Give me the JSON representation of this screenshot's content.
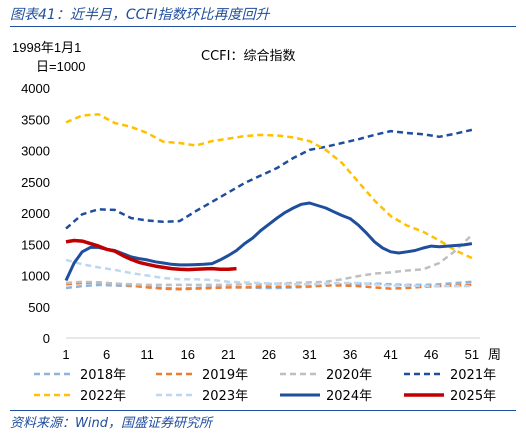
{
  "figure_title": "图表41：近半月，CCFI指数环比再度回升",
  "source": "资料来源：Wind，国盛证券研究所",
  "chart_data": {
    "type": "line",
    "title": "CCFI：综合指数",
    "ylabel": "1998年1月1日=1000",
    "xlabel_unit": "周",
    "xlim": [
      1,
      52
    ],
    "ylim": [
      0,
      4000
    ],
    "yticks": [
      0,
      500,
      1000,
      1500,
      2000,
      2500,
      3000,
      3500,
      4000
    ],
    "xticks": [
      1,
      6,
      11,
      16,
      21,
      26,
      31,
      36,
      41,
      46,
      51
    ],
    "grid": false,
    "legend_position": "bottom",
    "series": [
      {
        "name": "2018年",
        "color": "#8fb4dc",
        "style": "dashed",
        "width": 2.5,
        "x": [
          1,
          3,
          5,
          7,
          9,
          11,
          13,
          15,
          17,
          19,
          21,
          23,
          25,
          27,
          29,
          31,
          33,
          35,
          37,
          39,
          41,
          43,
          45,
          47,
          49,
          51
        ],
        "values": [
          800,
          830,
          850,
          840,
          830,
          820,
          800,
          790,
          800,
          810,
          810,
          810,
          800,
          800,
          810,
          820,
          840,
          860,
          870,
          870,
          860,
          850,
          850,
          860,
          880,
          900
        ]
      },
      {
        "name": "2019年",
        "color": "#ed7d31",
        "style": "dashed",
        "width": 2.5,
        "x": [
          1,
          3,
          5,
          7,
          9,
          11,
          13,
          15,
          17,
          19,
          21,
          23,
          25,
          27,
          29,
          31,
          33,
          35,
          37,
          39,
          41,
          43,
          45,
          47,
          49,
          51
        ],
        "values": [
          860,
          880,
          890,
          870,
          840,
          810,
          790,
          780,
          790,
          800,
          810,
          810,
          820,
          820,
          820,
          830,
          840,
          840,
          830,
          810,
          790,
          800,
          820,
          830,
          840,
          850
        ]
      },
      {
        "name": "2020年",
        "color": "#bfbfbf",
        "style": "dashed",
        "width": 2.5,
        "x": [
          1,
          3,
          5,
          7,
          9,
          11,
          13,
          15,
          17,
          19,
          21,
          23,
          25,
          27,
          29,
          31,
          33,
          35,
          37,
          39,
          41,
          43,
          45,
          47,
          49,
          51
        ],
        "values": [
          880,
          900,
          890,
          870,
          860,
          850,
          850,
          850,
          850,
          850,
          850,
          860,
          860,
          870,
          880,
          890,
          900,
          940,
          990,
          1030,
          1050,
          1080,
          1100,
          1200,
          1400,
          1650
        ]
      },
      {
        "name": "2021年",
        "color": "#1f4e9c",
        "style": "dashed",
        "width": 2.5,
        "x": [
          1,
          3,
          5,
          7,
          9,
          11,
          13,
          15,
          17,
          19,
          21,
          23,
          25,
          27,
          29,
          31,
          33,
          35,
          37,
          39,
          41,
          43,
          45,
          47,
          49,
          51
        ],
        "values": [
          1750,
          1980,
          2060,
          2050,
          1920,
          1880,
          1860,
          1870,
          2030,
          2180,
          2330,
          2480,
          2600,
          2720,
          2880,
          3010,
          3060,
          3120,
          3180,
          3250,
          3310,
          3280,
          3260,
          3220,
          3270,
          3330
        ]
      },
      {
        "name": "2022年",
        "color": "#ffc000",
        "style": "dashed",
        "width": 2.5,
        "x": [
          1,
          3,
          5,
          7,
          9,
          11,
          13,
          15,
          17,
          19,
          21,
          23,
          25,
          27,
          29,
          31,
          33,
          35,
          37,
          39,
          41,
          43,
          45,
          47,
          49,
          51
        ],
        "values": [
          3450,
          3560,
          3580,
          3440,
          3380,
          3280,
          3140,
          3120,
          3080,
          3150,
          3190,
          3230,
          3250,
          3240,
          3210,
          3150,
          3010,
          2800,
          2500,
          2200,
          1950,
          1800,
          1700,
          1560,
          1400,
          1280
        ]
      },
      {
        "name": "2023年",
        "color": "#bdd7ee",
        "style": "dashed",
        "width": 2.5,
        "x": [
          1,
          3,
          5,
          7,
          9,
          11,
          13,
          15,
          17,
          19,
          21,
          23,
          25,
          27,
          29,
          31,
          33,
          35,
          37,
          39,
          41,
          43,
          45,
          47,
          49,
          51
        ],
        "values": [
          1250,
          1180,
          1130,
          1090,
          1040,
          1000,
          960,
          940,
          940,
          930,
          900,
          890,
          880,
          870,
          860,
          860,
          870,
          880,
          880,
          860,
          840,
          840,
          830,
          830,
          830,
          830
        ]
      },
      {
        "name": "2024年",
        "color": "#1f4e9c",
        "style": "solid",
        "width": 3,
        "x": [
          1,
          2,
          3,
          4,
          5,
          6,
          7,
          8,
          9,
          10,
          11,
          12,
          13,
          14,
          15,
          16,
          17,
          18,
          19,
          20,
          21,
          22,
          23,
          24,
          25,
          26,
          27,
          28,
          29,
          30,
          31,
          32,
          33,
          34,
          35,
          36,
          37,
          38,
          39,
          40,
          41,
          42,
          43,
          44,
          45,
          46,
          47,
          48,
          49,
          50,
          51
        ],
        "values": [
          920,
          1200,
          1380,
          1450,
          1450,
          1420,
          1400,
          1350,
          1300,
          1270,
          1250,
          1220,
          1200,
          1180,
          1170,
          1170,
          1175,
          1180,
          1190,
          1250,
          1320,
          1400,
          1510,
          1600,
          1720,
          1820,
          1920,
          2010,
          2080,
          2140,
          2160,
          2120,
          2080,
          2020,
          1960,
          1910,
          1810,
          1680,
          1540,
          1440,
          1380,
          1360,
          1380,
          1400,
          1440,
          1470,
          1460,
          1470,
          1480,
          1490,
          1510
        ]
      },
      {
        "name": "2025年",
        "color": "#c00000",
        "style": "solid",
        "width": 3.5,
        "x": [
          1,
          2,
          3,
          4,
          5,
          6,
          7,
          8,
          9,
          10,
          11,
          12,
          13,
          14,
          15,
          16,
          17,
          18,
          19,
          20,
          21,
          22
        ],
        "values": [
          1540,
          1560,
          1550,
          1510,
          1470,
          1420,
          1390,
          1320,
          1260,
          1210,
          1180,
          1150,
          1130,
          1110,
          1100,
          1095,
          1100,
          1105,
          1110,
          1100,
          1100,
          1110
        ]
      }
    ]
  }
}
